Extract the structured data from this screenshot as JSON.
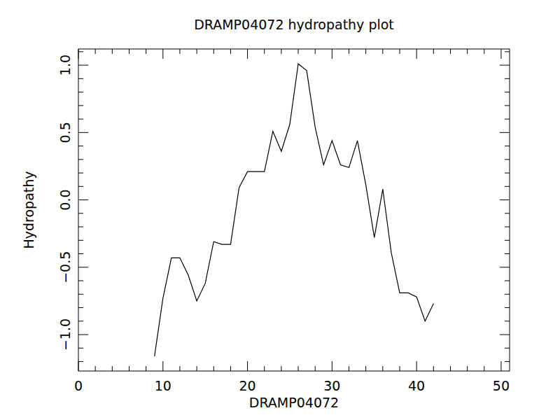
{
  "chart_data": {
    "type": "line",
    "title": "DRAMP04072 hydropathy plot",
    "x_label": "DRAMP04072",
    "y_label": "Hydropathy",
    "x": [
      9,
      10,
      11,
      12,
      13,
      14,
      15,
      16,
      17,
      18,
      19,
      20,
      21,
      22,
      23,
      24,
      25,
      26,
      27,
      28,
      29,
      30,
      31,
      32,
      33,
      34,
      35,
      36,
      37,
      38,
      39,
      40,
      41,
      42
    ],
    "values": [
      -1.16,
      -0.73,
      -0.43,
      -0.43,
      -0.56,
      -0.75,
      -0.62,
      -0.31,
      -0.33,
      -0.33,
      0.09,
      0.21,
      0.21,
      0.21,
      0.51,
      0.36,
      0.56,
      1.01,
      0.96,
      0.54,
      0.26,
      0.44,
      0.26,
      0.24,
      0.44,
      0.11,
      -0.28,
      0.08,
      -0.39,
      -0.69,
      -0.69,
      -0.72,
      -0.9,
      -0.77
    ],
    "color": "#000000",
    "xlim": [
      0,
      51
    ],
    "xticks": [
      0,
      10,
      20,
      30,
      40,
      50
    ],
    "ylim": [
      -1.27,
      1.12
    ],
    "yticks": [
      {
        "value": -1.0,
        "label": "−1.0"
      },
      {
        "value": -0.5,
        "label": "−0.5"
      },
      {
        "value": 0.0,
        "label": "0.0"
      },
      {
        "value": 0.5,
        "label": "0.5"
      },
      {
        "value": 1.0,
        "label": "1.0"
      }
    ],
    "grid": false
  }
}
